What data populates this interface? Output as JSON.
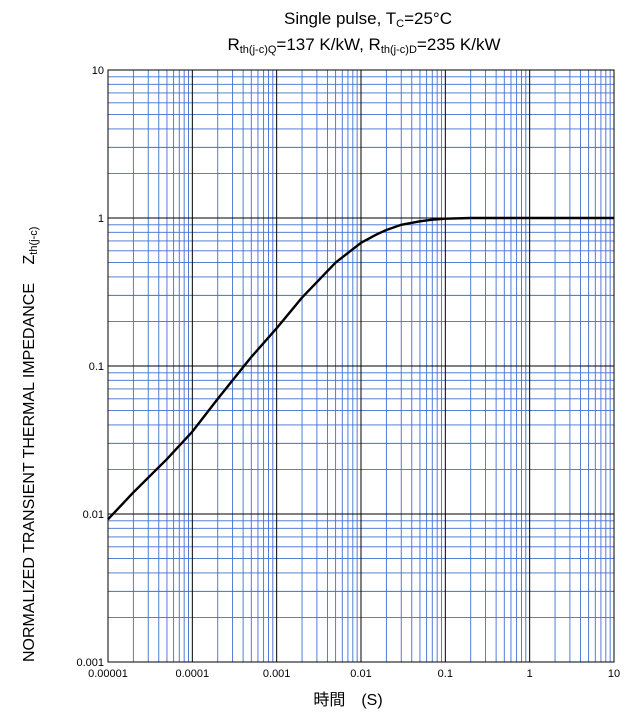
{
  "chart_data": {
    "type": "line",
    "title_line1": {
      "text": "Single  pulse,  T",
      "sub": "C",
      "rest": "=25°C"
    },
    "title_line2": {
      "r1": "R",
      "sub1": "th(j-c)Q",
      "mid": "=137 K/kW, R",
      "sub2": "th(j-c)D",
      "end": "=235 K/kW"
    },
    "xlabel": "時間　(S)",
    "ylabel": {
      "main": "NORMALIZED TRANSIENT THERMAL IMPEDANCE",
      "z": "Z",
      "sub": "th(j-c)"
    },
    "x_scale": "log",
    "y_scale": "log",
    "xlim": [
      1e-05,
      10
    ],
    "ylim": [
      0.001,
      10
    ],
    "xticks": [
      "0.00001",
      "0.0001",
      "0.001",
      "0.01",
      "0.1",
      "1",
      "10"
    ],
    "yticks": [
      "0.001",
      "0.01",
      "0.1",
      "1",
      "10"
    ],
    "grid": true,
    "colors": {
      "grid": "#3f6fd1",
      "major_grid": "#000000",
      "line": "#000000"
    },
    "series": [
      {
        "x": [
          1e-05,
          2e-05,
          5e-05,
          0.0001,
          0.0002,
          0.0005,
          0.001,
          0.002,
          0.005,
          0.01,
          0.015,
          0.02,
          0.03,
          0.05,
          0.07,
          0.1,
          0.2,
          0.5,
          1,
          2,
          5,
          10
        ],
        "values": [
          0.0092,
          0.014,
          0.0235,
          0.036,
          0.06,
          0.115,
          0.18,
          0.29,
          0.5,
          0.68,
          0.77,
          0.83,
          0.9,
          0.95,
          0.975,
          0.99,
          1.0,
          1.0,
          1.0,
          1.0,
          1.0,
          1.0
        ]
      }
    ]
  }
}
